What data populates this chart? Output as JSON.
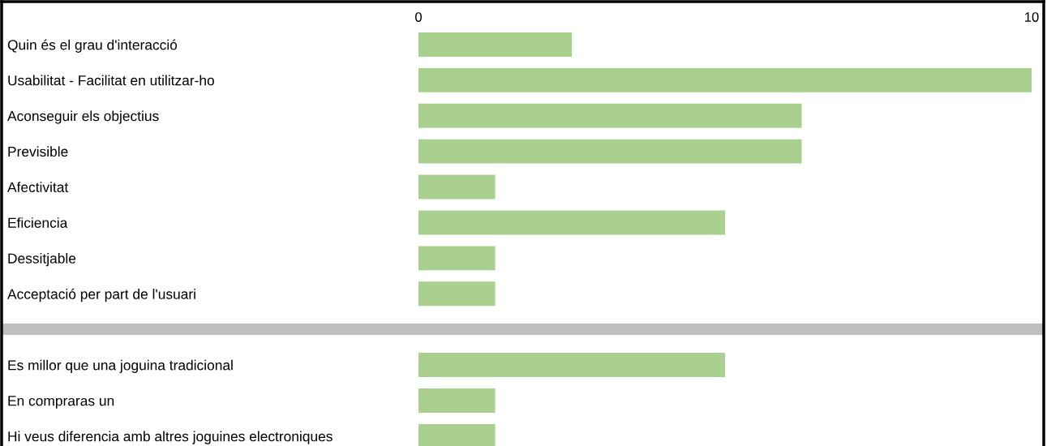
{
  "chart_data": {
    "type": "bar",
    "orientation": "horizontal",
    "categories": [
      "Quin és el grau d'interacció",
      "Usabilitat - Facilitat en utilitzar-ho",
      "Aconseguir els objectius",
      "Previsible",
      "Afectivitat",
      "Eficiencia",
      "Dessitjable",
      "Acceptació per part de l'usuari",
      null,
      "Es millor que una joguina tradicional",
      "En compraras un",
      "Hi veus diferencia amb altres joguines electroniques"
    ],
    "values": [
      2.5,
      10,
      6.25,
      6.25,
      1.25,
      5,
      1.25,
      1.25,
      null,
      5,
      1.25,
      1.25
    ],
    "color": "#a9d08e",
    "xlim": [
      0,
      10
    ],
    "xticks": [
      0,
      10
    ],
    "grid": false,
    "legend": false
  }
}
